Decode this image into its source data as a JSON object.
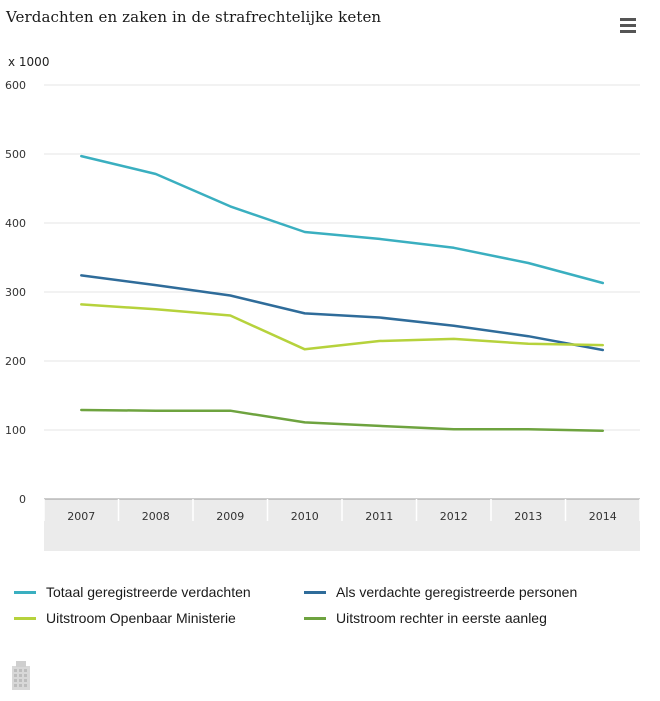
{
  "header": {
    "title": "Verdachten en zaken in de strafrechtelijke keten",
    "menu_icon": "hamburger-menu-icon"
  },
  "chart_data": {
    "type": "line",
    "title": "Verdachten en zaken in de strafrechtelijke keten",
    "unit_label": "x 1000",
    "xlabel": "",
    "ylabel": "",
    "categories": [
      "2007",
      "2008",
      "2009",
      "2010",
      "2011",
      "2012",
      "2013",
      "2014"
    ],
    "ylim": [
      0,
      600
    ],
    "yticks": [
      "0",
      "100",
      "200",
      "300",
      "400",
      "500",
      "600"
    ],
    "grid": true,
    "legend_position": "bottom",
    "series": [
      {
        "name": "Totaal geregistreerde verdachten",
        "color": "#3aafc0",
        "values": [
          497,
          471,
          424,
          387,
          377,
          364,
          342,
          313
        ]
      },
      {
        "name": "Als verdachte geregistreerde personen",
        "color": "#2f6c9a",
        "values": [
          324,
          310,
          295,
          269,
          263,
          251,
          236,
          216
        ]
      },
      {
        "name": "Uitstroom Openbaar Ministerie",
        "color": "#b6d23c",
        "values": [
          282,
          275,
          266,
          217,
          229,
          232,
          225,
          223
        ]
      },
      {
        "name": "Uitstroom rechter in eerste aanleg",
        "color": "#6ea33f",
        "values": [
          129,
          128,
          128,
          111,
          106,
          101,
          101,
          99
        ]
      }
    ]
  }
}
